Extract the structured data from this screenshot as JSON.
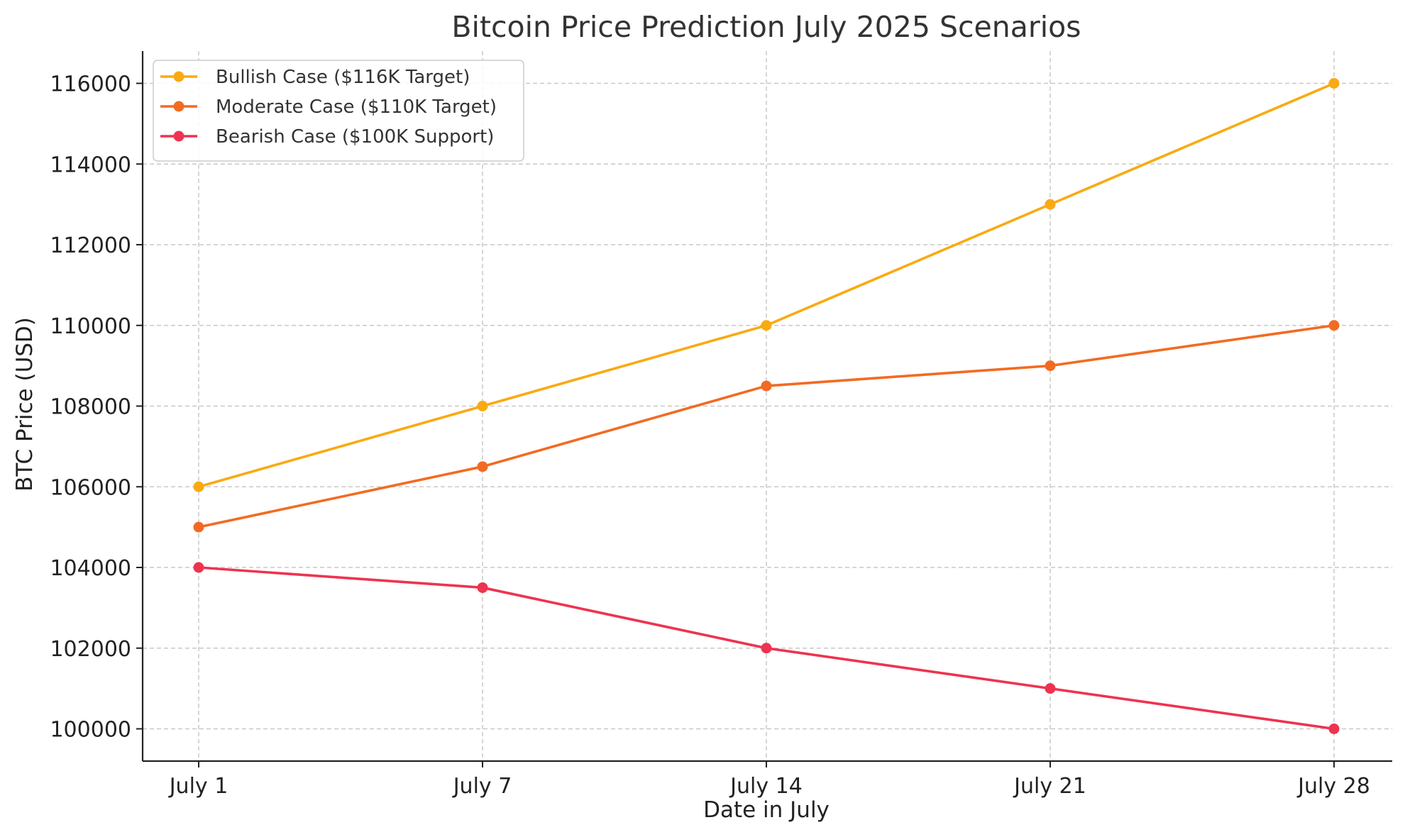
{
  "chart_data": {
    "type": "line",
    "title": "Bitcoin Price Prediction July 2025 Scenarios",
    "xlabel": "Date in July",
    "ylabel": "BTC Price (USD)",
    "categories": [
      "July 1",
      "July 7",
      "July 14",
      "July 21",
      "July 28"
    ],
    "y_ticks": [
      100000,
      102000,
      104000,
      106000,
      108000,
      110000,
      112000,
      114000,
      116000
    ],
    "y_tick_labels": [
      "100000",
      "102000",
      "104000",
      "106000",
      "108000",
      "110000",
      "112000",
      "114000",
      "116000"
    ],
    "ylim": [
      99200,
      116800
    ],
    "grid": true,
    "legend_position": "top-left",
    "series": [
      {
        "name": "Bullish Case ($116K Target)",
        "color": "#F9AA12",
        "values": [
          106000,
          108000,
          110000,
          113000,
          116000
        ]
      },
      {
        "name": "Moderate Case ($110K Target)",
        "color": "#F26B22",
        "values": [
          105000,
          106500,
          108500,
          109000,
          110000
        ]
      },
      {
        "name": "Bearish Case ($100K Support)",
        "color": "#EE3350",
        "values": [
          104000,
          103500,
          102000,
          101000,
          100000
        ]
      }
    ]
  }
}
